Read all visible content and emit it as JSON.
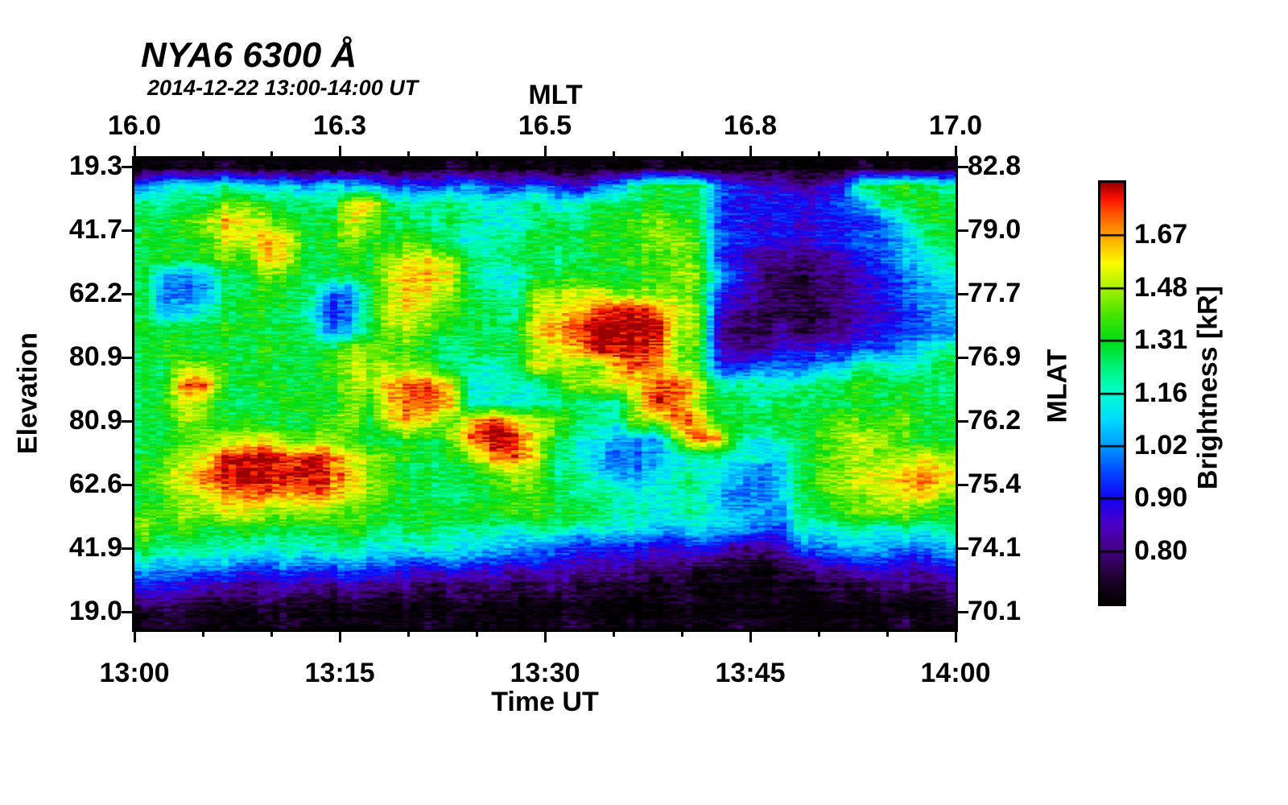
{
  "background_color": "#ffffff",
  "chart_data": {
    "type": "heatmap",
    "title": "NYA6 6300 Å",
    "subtitle": "2014-12-22 13:00-14:00 UT",
    "xlabel_bottom": "Time UT",
    "xlabel_top": "MLT",
    "ylabel_left": "Elevation",
    "ylabel_right": "MLAT",
    "colorbar_label": "Brightness [kR]",
    "x_ticks_bottom": [
      "13:00",
      "13:15",
      "13:30",
      "13:45",
      "14:00"
    ],
    "x_ticks_top": [
      "16.0",
      "16.3",
      "16.5",
      "16.8",
      "17.0"
    ],
    "y_ticks_left": [
      "19.3",
      "41.7",
      "62.2",
      "80.9",
      "80.9",
      "62.6",
      "41.9",
      "19.0"
    ],
    "y_ticks_right": [
      "82.8",
      "79.0",
      "77.7",
      "76.9",
      "76.2",
      "75.4",
      "74.1",
      "70.1"
    ],
    "colorbar_ticks": [
      "1.67",
      "1.48",
      "1.31",
      "1.16",
      "1.02",
      "0.90",
      "0.80"
    ],
    "value_units": "kR",
    "value_range_kR": [
      0.72,
      1.88
    ],
    "value_scale": "log",
    "colormap_stops": [
      {
        "t": 0.0,
        "c": "#000000"
      },
      {
        "t": 0.06,
        "c": "#1e002c"
      },
      {
        "t": 0.125,
        "c": "#43007e"
      },
      {
        "t": 0.19,
        "c": "#4b00c8"
      },
      {
        "t": 0.25,
        "c": "#1202f2"
      },
      {
        "t": 0.315,
        "c": "#0049ff"
      },
      {
        "t": 0.375,
        "c": "#009aff"
      },
      {
        "t": 0.44,
        "c": "#00dcff"
      },
      {
        "t": 0.5,
        "c": "#00fdd0"
      },
      {
        "t": 0.56,
        "c": "#00f47c"
      },
      {
        "t": 0.625,
        "c": "#00dc14"
      },
      {
        "t": 0.69,
        "c": "#49e600"
      },
      {
        "t": 0.75,
        "c": "#a8f200"
      },
      {
        "t": 0.81,
        "c": "#fbfb00"
      },
      {
        "t": 0.875,
        "c": "#ffa400"
      },
      {
        "t": 0.93,
        "c": "#ff4f00"
      },
      {
        "t": 0.965,
        "c": "#f80d00"
      },
      {
        "t": 1.0,
        "c": "#9b0000"
      }
    ],
    "grid": {
      "cols": 40,
      "rows": 26,
      "encoding": "each hex digit 0-15 = brightness index on log scale from 0.72 kR (0) to 1.88 kR (15); columns span 13:00-14:00 UT, rows span top-to-bottom of keogram",
      "rows_data": [
        "0000100000000001000000000100000000010000",
        "5777876757664545644543468999543323499a98",
        "9899bba998cd9899878978999a995444445699a9",
        "99abdcba99cb99898778989aaba9443434445799",
        "999accdc99ba9a98788999a9abba544334455689",
        "9a9abadc99a9bccb9899899aaaba432222345678",
        "965699ba999acddc87799a999abb642112234567",
        "955699a99559bdcb988bbccbbbba432112234566",
        "96689a998459ccba998bcdeffecb321111233456",
        "9999a9999569bba9989cdeffffbb211212234455",
        "9a9999a999bbaa98999bcdfffeba322334455678",
        "99bba9999abbbba8878cbbadedba445556698789",
        "99ee99a999bbdeec77879bbcceec8887899a9998",
        "9acb999aa9badeed78788988cfeb9989999a9a99",
        "99ba9a999ab9cdcadedbb988bbed99999abaab99",
        "99abbccbaba99a9beffc987666bed8789abcba99",
        "9abcfffefecba999bdec8865567887769abbbbcb",
        "abcefffffedba9999abb8976678876569bbccdec",
        "9abcdeededcba99899aa9888778865569abbccdb",
        "aabbccbbbbaa99a9a9aa9a988788766599abbba9",
        "b9a99a9999a98998887887777667665487887878",
        "9888887878877787766554444334322255666556",
        "7666655655655445443433232221110123344334",
        "4433322322322212121121111010000001112212",
        "2211112110110101101001000010000000101001",
        "0100000100000010000001000000010000000100"
      ]
    }
  }
}
